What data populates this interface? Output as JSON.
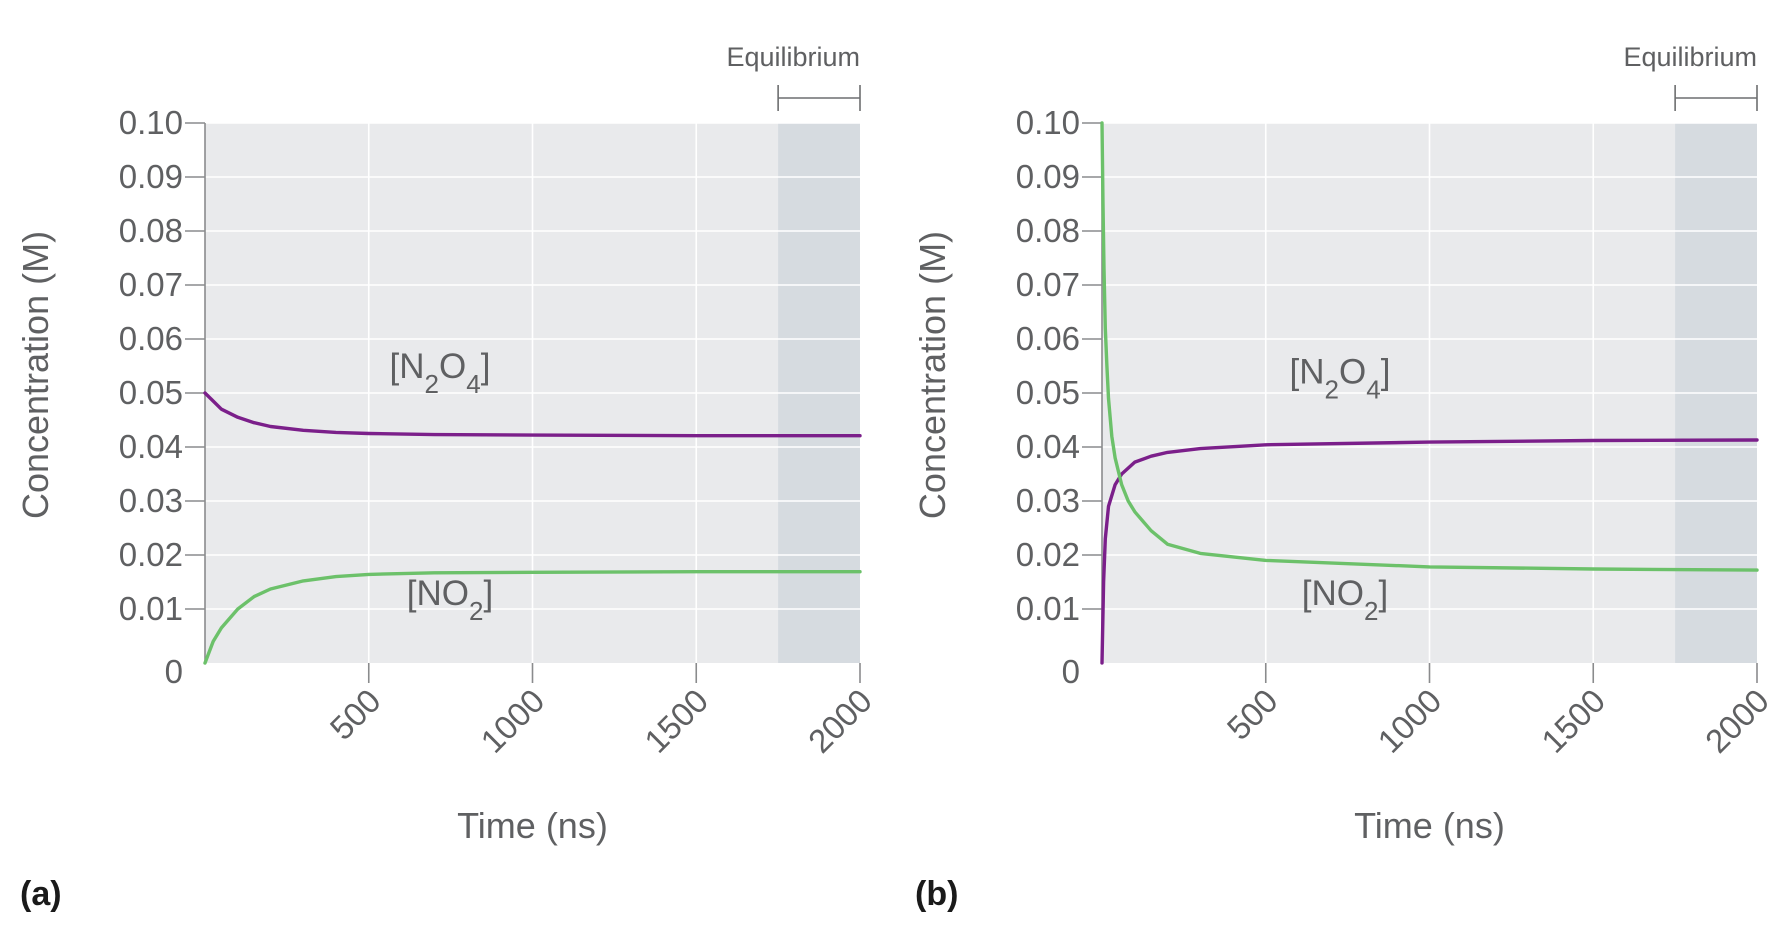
{
  "chart_data": [
    {
      "type": "line",
      "panel_label": "(a)",
      "xlabel": "Time (ns)",
      "ylabel": "Concentration (M)",
      "xlim": [
        0,
        2000
      ],
      "ylim": [
        0,
        0.1
      ],
      "xticks": [
        "500",
        "1000",
        "1500",
        "2000"
      ],
      "yticks": [
        "0",
        "0.01",
        "0.02",
        "0.03",
        "0.04",
        "0.05",
        "0.06",
        "0.07",
        "0.08",
        "0.09",
        "0.10"
      ],
      "grid": true,
      "equilibrium": {
        "label": "Equilibrium",
        "x_start": 1750,
        "x_end": 2000
      },
      "series": [
        {
          "name": "[N2O4]",
          "label_parts": [
            "[N",
            "2",
            "O",
            "4",
            "]"
          ],
          "color": "#7b1f8a",
          "x": [
            0,
            50,
            100,
            150,
            200,
            300,
            400,
            500,
            700,
            1000,
            1500,
            2000
          ],
          "y": [
            0.05,
            0.047,
            0.0455,
            0.0445,
            0.0438,
            0.0431,
            0.0427,
            0.0425,
            0.0423,
            0.0422,
            0.0421,
            0.0421
          ]
        },
        {
          "name": "[NO2]",
          "label_parts": [
            "[NO",
            "2",
            "]"
          ],
          "color": "#6cc16a",
          "x": [
            0,
            25,
            50,
            100,
            150,
            200,
            300,
            400,
            500,
            700,
            1000,
            1500,
            2000
          ],
          "y": [
            0.0,
            0.004,
            0.0065,
            0.01,
            0.0123,
            0.0137,
            0.0152,
            0.016,
            0.0164,
            0.0167,
            0.0168,
            0.0169,
            0.0169
          ]
        }
      ]
    },
    {
      "type": "line",
      "panel_label": "(b)",
      "xlabel": "Time (ns)",
      "ylabel": "Concentration (M)",
      "xlim": [
        0,
        2000
      ],
      "ylim": [
        0,
        0.1
      ],
      "xticks": [
        "500",
        "1000",
        "1500",
        "2000"
      ],
      "yticks": [
        "0",
        "0.01",
        "0.02",
        "0.03",
        "0.04",
        "0.05",
        "0.06",
        "0.07",
        "0.08",
        "0.09",
        "0.10"
      ],
      "grid": true,
      "equilibrium": {
        "label": "Equilibrium",
        "x_start": 1750,
        "x_end": 2000
      },
      "series": [
        {
          "name": "[N2O4]",
          "label_parts": [
            "[N",
            "2",
            "O",
            "4",
            "]"
          ],
          "color": "#7b1f8a",
          "x": [
            0,
            5,
            10,
            20,
            40,
            60,
            100,
            150,
            200,
            300,
            500,
            1000,
            1500,
            2000
          ],
          "y": [
            0.0,
            0.015,
            0.023,
            0.029,
            0.033,
            0.035,
            0.0372,
            0.0383,
            0.039,
            0.0397,
            0.0404,
            0.0409,
            0.0412,
            0.0413
          ]
        },
        {
          "name": "[NO2]",
          "label_parts": [
            "[NO",
            "2",
            "]"
          ],
          "color": "#6cc16a",
          "x": [
            0,
            3,
            6,
            10,
            15,
            20,
            30,
            40,
            60,
            80,
            100,
            150,
            200,
            300,
            500,
            1000,
            1500,
            2000
          ],
          "y": [
            0.1,
            0.085,
            0.073,
            0.062,
            0.055,
            0.049,
            0.042,
            0.038,
            0.033,
            0.03,
            0.028,
            0.0245,
            0.022,
            0.0203,
            0.019,
            0.0178,
            0.0174,
            0.0172
          ]
        }
      ]
    }
  ]
}
